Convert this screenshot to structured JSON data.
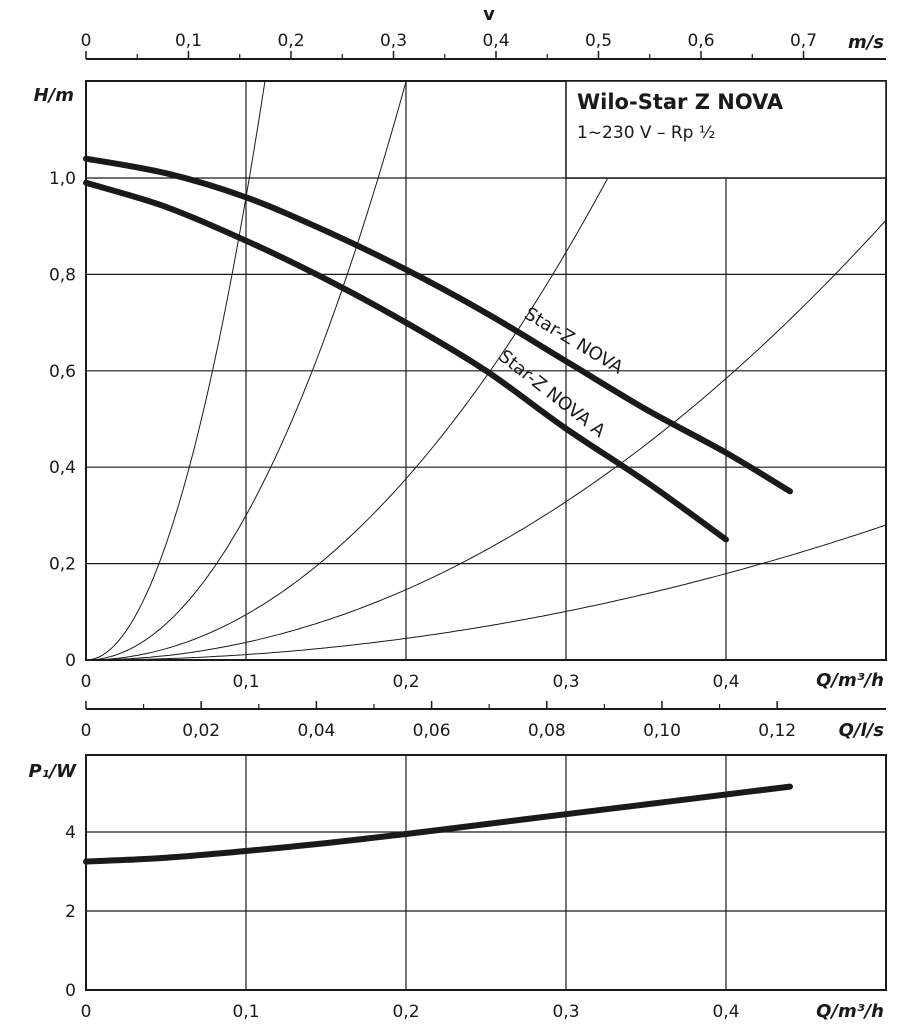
{
  "chart_data": [
    {
      "type": "line",
      "title": "Wilo-Star Z NOVA",
      "subtitle": "1~230 V – Rp ½",
      "xlabel": "Q/m³/h",
      "ylabel": "H/m",
      "xlim": [
        0,
        0.5
      ],
      "ylim": [
        0,
        1.2
      ],
      "x_ticks": [
        "0",
        "0,1",
        "0,2",
        "0,3",
        "0,4"
      ],
      "y_ticks": [
        "0",
        "0,2",
        "0,4",
        "0,6",
        "0,8",
        "1,0"
      ],
      "grid": true,
      "top_axis": {
        "label_symbol": "v",
        "label_unit": "m/s",
        "ticks": [
          "0",
          "0,1",
          "0,2",
          "0,3",
          "0,4",
          "0,5",
          "0,6",
          "0,7"
        ]
      },
      "series": [
        {
          "name": "Star-Z NOVA",
          "x": [
            0,
            0.05,
            0.1,
            0.15,
            0.2,
            0.25,
            0.3,
            0.35,
            0.4,
            0.44
          ],
          "y": [
            1.04,
            1.01,
            0.96,
            0.89,
            0.81,
            0.72,
            0.62,
            0.52,
            0.43,
            0.35
          ]
        },
        {
          "name": "Star-Z NOVA A",
          "x": [
            0,
            0.05,
            0.1,
            0.15,
            0.2,
            0.25,
            0.3,
            0.35,
            0.4
          ],
          "y": [
            0.99,
            0.94,
            0.87,
            0.79,
            0.7,
            0.6,
            0.48,
            0.37,
            0.25
          ]
        }
      ],
      "system_curves": [
        {
          "k": 96
        },
        {
          "k": 30
        },
        {
          "k": 9.4
        },
        {
          "k": 3.65
        },
        {
          "k": 1.12
        }
      ]
    },
    {
      "type": "line",
      "xlabel": "Q/m³/h",
      "ylabel": "P₁/W",
      "xlim": [
        0,
        0.5
      ],
      "ylim": [
        0,
        6
      ],
      "x_ticks": [
        "0",
        "0,1",
        "0,2",
        "0,3",
        "0,4"
      ],
      "y_ticks": [
        "0",
        "2",
        "4"
      ],
      "grid": true,
      "top_axis": {
        "label": "Q/l/s",
        "ticks": [
          "0",
          "0,02",
          "0,04",
          "0,06",
          "0,08",
          "0,10",
          "0,12"
        ]
      },
      "series": [
        {
          "x": [
            0,
            0.05,
            0.1,
            0.15,
            0.2,
            0.25,
            0.3,
            0.35,
            0.4,
            0.44
          ],
          "y": [
            3.25,
            3.35,
            3.52,
            3.72,
            3.95,
            4.2,
            4.45,
            4.7,
            4.95,
            5.15
          ]
        }
      ]
    }
  ]
}
